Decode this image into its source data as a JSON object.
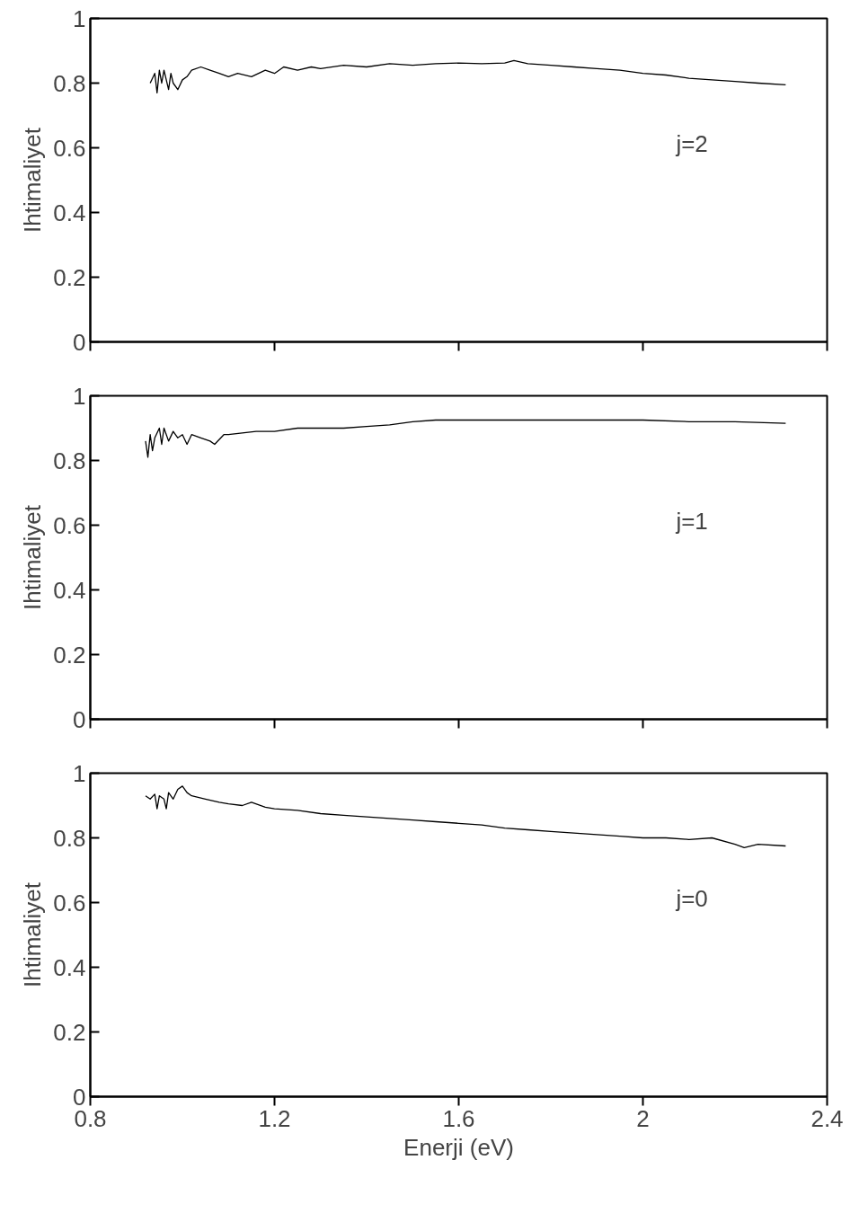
{
  "chart_data": [
    {
      "type": "line",
      "ylabel": "Ihtimaliyet",
      "annotations": [
        "j=2"
      ],
      "xlim": [
        0.8,
        2.4
      ],
      "xticks": [
        {
          "value": 0.8,
          "label": null
        },
        {
          "value": 1.2,
          "label": null
        },
        {
          "value": 1.6,
          "label": null
        },
        {
          "value": 2,
          "label": null
        },
        {
          "value": 2.4,
          "label": null
        }
      ],
      "ylim": [
        0,
        1
      ],
      "yticks": [
        0,
        0.2,
        0.4,
        0.6,
        0.8,
        1
      ],
      "tick_labels": "y",
      "grid": false,
      "series": [
        {
          "color": "#000000",
          "x": [
            0.93,
            0.94,
            0.945,
            0.95,
            0.955,
            0.96,
            0.97,
            0.975,
            0.98,
            0.99,
            1.0,
            1.01,
            1.02,
            1.04,
            1.06,
            1.08,
            1.1,
            1.12,
            1.15,
            1.18,
            1.2,
            1.22,
            1.25,
            1.28,
            1.3,
            1.35,
            1.4,
            1.45,
            1.5,
            1.55,
            1.6,
            1.65,
            1.7,
            1.72,
            1.75,
            1.8,
            1.85,
            1.9,
            1.95,
            2.0,
            2.05,
            2.1,
            2.15,
            2.2,
            2.25,
            2.31
          ],
          "values": [
            0.8,
            0.83,
            0.77,
            0.84,
            0.8,
            0.84,
            0.78,
            0.83,
            0.8,
            0.78,
            0.81,
            0.82,
            0.84,
            0.85,
            0.84,
            0.83,
            0.82,
            0.83,
            0.82,
            0.84,
            0.83,
            0.85,
            0.84,
            0.85,
            0.845,
            0.855,
            0.85,
            0.86,
            0.855,
            0.86,
            0.862,
            0.86,
            0.862,
            0.87,
            0.86,
            0.855,
            0.85,
            0.845,
            0.84,
            0.83,
            0.825,
            0.815,
            0.81,
            0.805,
            0.8,
            0.795
          ]
        }
      ]
    },
    {
      "type": "line",
      "ylabel": "Ihtimaliyet",
      "annotations": [
        "j=1"
      ],
      "xlim": [
        0.8,
        2.4
      ],
      "xticks": [
        {
          "value": 0.8,
          "label": null
        },
        {
          "value": 1.2,
          "label": null
        },
        {
          "value": 1.6,
          "label": null
        },
        {
          "value": 2,
          "label": null
        },
        {
          "value": 2.4,
          "label": null
        }
      ],
      "ylim": [
        0,
        1
      ],
      "yticks": [
        0,
        0.2,
        0.4,
        0.6,
        0.8,
        1
      ],
      "tick_labels": "y",
      "grid": false,
      "series": [
        {
          "color": "#000000",
          "x": [
            0.92,
            0.925,
            0.93,
            0.935,
            0.94,
            0.95,
            0.955,
            0.96,
            0.97,
            0.98,
            0.99,
            1.0,
            1.01,
            1.02,
            1.04,
            1.06,
            1.07,
            1.09,
            1.1,
            1.13,
            1.16,
            1.2,
            1.25,
            1.3,
            1.35,
            1.4,
            1.45,
            1.5,
            1.55,
            1.6,
            1.7,
            1.8,
            1.9,
            2.0,
            2.1,
            2.2,
            2.31
          ],
          "values": [
            0.86,
            0.81,
            0.88,
            0.83,
            0.87,
            0.9,
            0.85,
            0.9,
            0.86,
            0.89,
            0.87,
            0.88,
            0.85,
            0.88,
            0.87,
            0.86,
            0.85,
            0.88,
            0.88,
            0.885,
            0.89,
            0.89,
            0.9,
            0.9,
            0.9,
            0.905,
            0.91,
            0.92,
            0.925,
            0.925,
            0.925,
            0.925,
            0.925,
            0.925,
            0.92,
            0.92,
            0.915
          ]
        }
      ]
    },
    {
      "type": "line",
      "ylabel": "Ihtimaliyet",
      "xlabel": "Enerji (eV)",
      "annotations": [
        "j=0"
      ],
      "xlim": [
        0.8,
        2.4
      ],
      "xticks": [
        0.8,
        1.2,
        1.6,
        2,
        2.4
      ],
      "ylim": [
        0,
        1
      ],
      "yticks": [
        0,
        0.2,
        0.4,
        0.6,
        0.8,
        1
      ],
      "grid": false,
      "series": [
        {
          "color": "#000000",
          "x": [
            0.92,
            0.93,
            0.94,
            0.945,
            0.95,
            0.96,
            0.965,
            0.97,
            0.98,
            0.99,
            1.0,
            1.01,
            1.02,
            1.05,
            1.08,
            1.1,
            1.13,
            1.15,
            1.18,
            1.2,
            1.25,
            1.3,
            1.35,
            1.4,
            1.45,
            1.5,
            1.55,
            1.6,
            1.65,
            1.7,
            1.75,
            1.8,
            1.85,
            1.9,
            1.95,
            2.0,
            2.05,
            2.1,
            2.15,
            2.2,
            2.22,
            2.25,
            2.31
          ],
          "values": [
            0.93,
            0.92,
            0.935,
            0.89,
            0.93,
            0.92,
            0.89,
            0.94,
            0.92,
            0.95,
            0.96,
            0.94,
            0.93,
            0.92,
            0.91,
            0.905,
            0.9,
            0.91,
            0.895,
            0.89,
            0.885,
            0.875,
            0.87,
            0.865,
            0.86,
            0.855,
            0.85,
            0.845,
            0.84,
            0.83,
            0.825,
            0.82,
            0.815,
            0.81,
            0.805,
            0.8,
            0.8,
            0.795,
            0.8,
            0.78,
            0.77,
            0.78,
            0.775
          ]
        }
      ]
    }
  ]
}
